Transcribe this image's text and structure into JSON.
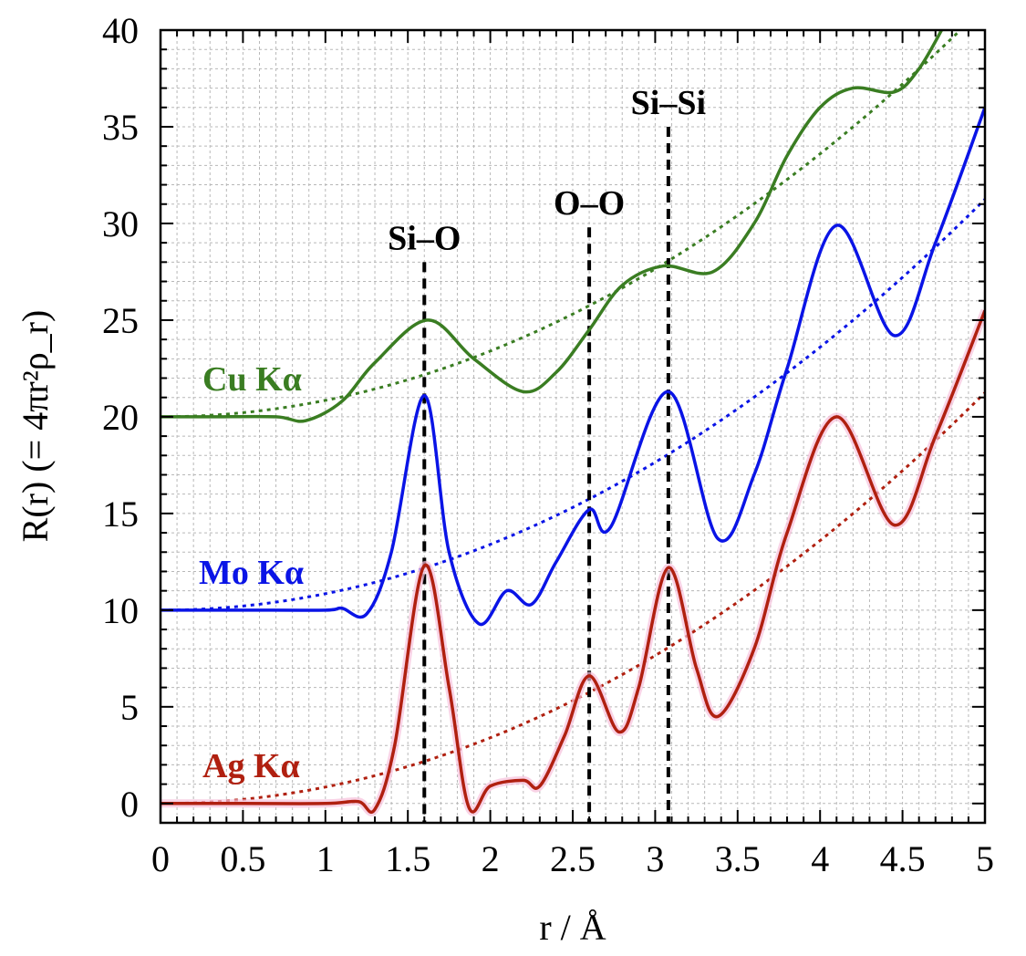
{
  "chart_data": {
    "type": "line",
    "xlabel": "r / Å",
    "ylabel": "R(r) (= 4πr²ρ_r)",
    "xlim": [
      0,
      5
    ],
    "ylim": [
      -1,
      40
    ],
    "xticks": [
      "0",
      "0.5",
      "1",
      "1.5",
      "2",
      "2.5",
      "3",
      "3.5",
      "4",
      "4.5",
      "5"
    ],
    "yticks": [
      "0",
      "5",
      "10",
      "15",
      "20",
      "25",
      "30",
      "35",
      "40"
    ],
    "grid": true,
    "series": [
      {
        "name": "Cu Kα",
        "color": "#3a7d22",
        "x": [
          0,
          0.3,
          0.7,
          0.88,
          1.1,
          1.3,
          1.62,
          1.9,
          2.2,
          2.4,
          2.6,
          2.8,
          3.05,
          3.35,
          3.6,
          3.8,
          4.0,
          4.2,
          4.45,
          4.6,
          4.75
        ],
        "y": [
          20,
          20,
          20,
          19.8,
          20.8,
          22.8,
          25,
          23,
          21.3,
          22.3,
          24.5,
          26.8,
          27.8,
          27.5,
          30,
          33.5,
          36,
          37,
          36.8,
          38,
          40.2
        ],
        "baseline": {
          "style": "dotted",
          "offset": 20,
          "coef": 0.85
        }
      },
      {
        "name": "Mo Kα",
        "color": "#0a14e6",
        "x": [
          0,
          0.5,
          1.0,
          1.1,
          1.25,
          1.4,
          1.6,
          1.75,
          1.93,
          2.1,
          2.25,
          2.4,
          2.6,
          2.73,
          3.08,
          3.38,
          3.6,
          3.8,
          4.1,
          4.45,
          4.7,
          5.0
        ],
        "y": [
          10,
          10,
          10,
          10.1,
          9.8,
          13,
          21.1,
          13,
          9.3,
          11,
          10.3,
          12.5,
          15.2,
          14.3,
          21.3,
          13.7,
          17,
          22.5,
          29.9,
          24.2,
          29,
          36
        ],
        "baseline": {
          "style": "dotted",
          "offset": 10,
          "coef": 0.85
        }
      },
      {
        "name": "Ag Kα",
        "color": "#b02010",
        "x": [
          0,
          0.5,
          1.0,
          1.2,
          1.3,
          1.42,
          1.6,
          1.75,
          1.87,
          2.0,
          2.2,
          2.3,
          2.45,
          2.6,
          2.78,
          2.9,
          3.08,
          3.25,
          3.38,
          3.6,
          3.8,
          4.1,
          4.45,
          4.7,
          5.0
        ],
        "y": [
          0,
          0,
          0,
          0.1,
          -0.3,
          3,
          12.3,
          6,
          -0.2,
          0.9,
          1.2,
          0.9,
          3.5,
          6.6,
          3.7,
          6,
          12.2,
          7,
          4.5,
          8,
          14,
          20,
          14.4,
          19,
          25.5
        ],
        "baseline": {
          "style": "dotted",
          "offset": 0,
          "coef": 0.85
        }
      }
    ],
    "annotations": [
      {
        "text": "Si–O",
        "x": 1.6,
        "line_top": 28
      },
      {
        "text": "O–O",
        "x": 2.6,
        "line_top": 29.8
      },
      {
        "text": "Si–Si",
        "x": 3.08,
        "line_top": 35
      }
    ],
    "legend_placement": "inline-left"
  }
}
